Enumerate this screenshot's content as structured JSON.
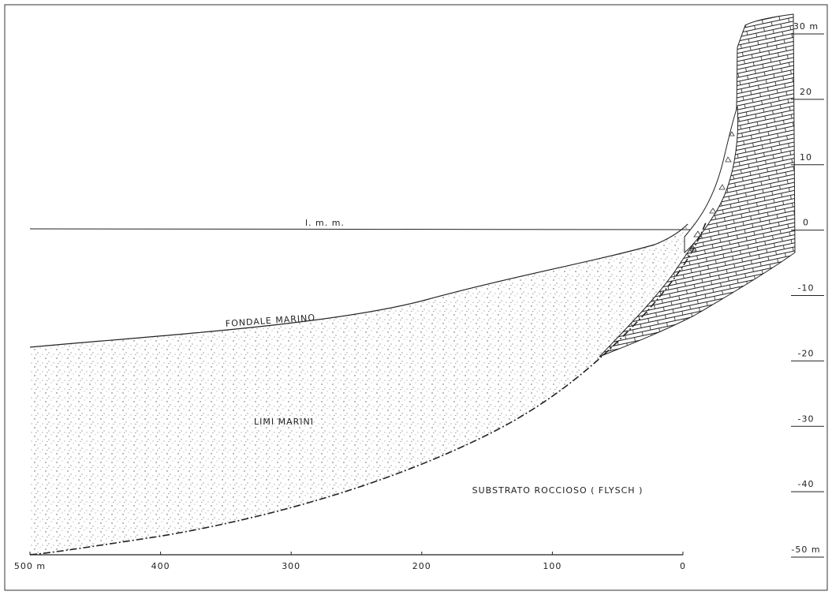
{
  "diagram": {
    "sea_level_label": "l. m. m.",
    "seabed_label": "FONDALE MARINO",
    "silt_label": "LIMI MARINI",
    "bedrock_label": "SUBSTRATO ROCCIOSO ( FLYSCH )",
    "distance_labels": [
      "500 m",
      "400",
      "300",
      "200",
      "100",
      "0"
    ],
    "depth_labels": [
      "30 m",
      "20",
      "10",
      "0",
      "-10",
      "-20",
      "-30",
      "-40",
      "-50 m"
    ]
  }
}
